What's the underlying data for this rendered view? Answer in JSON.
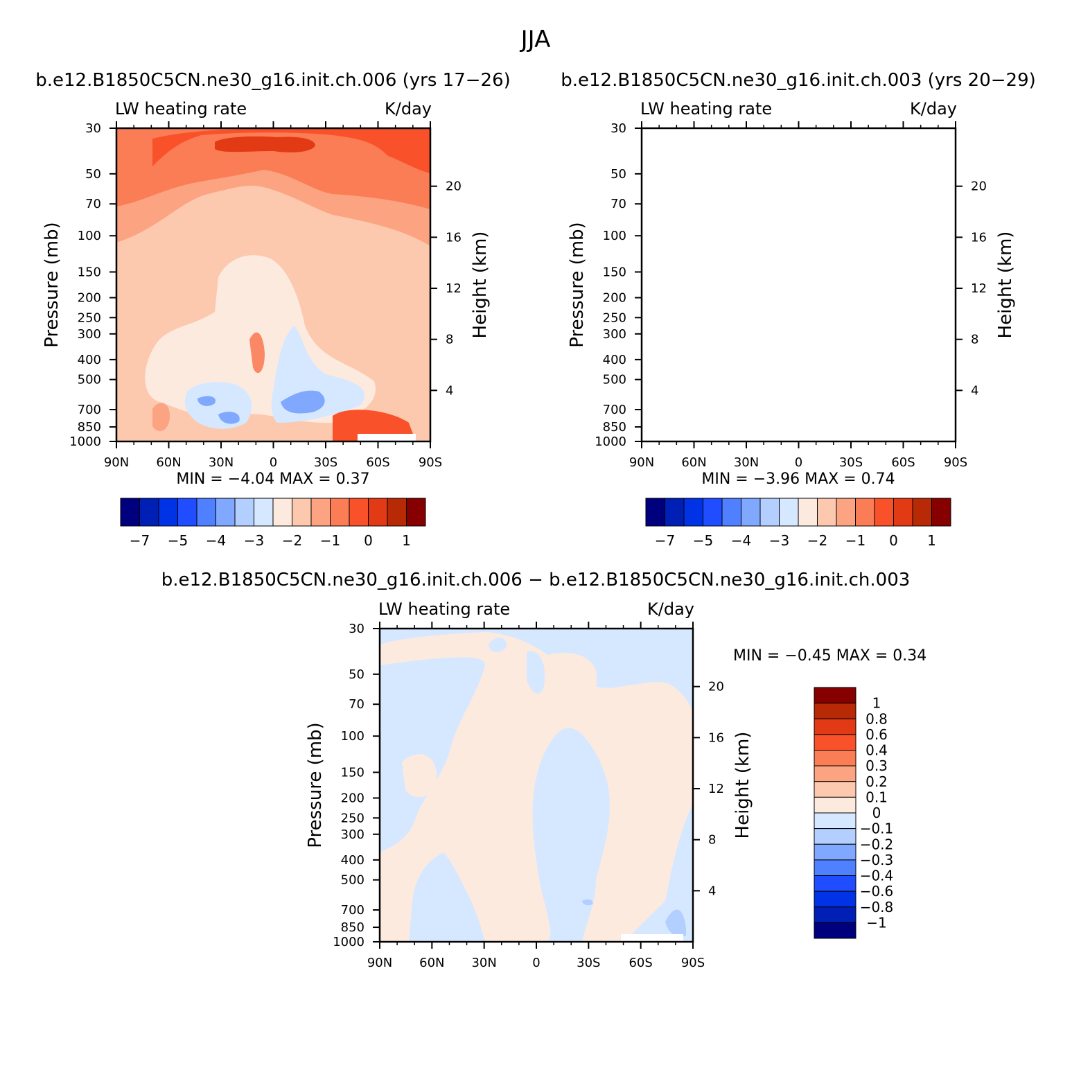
{
  "title": "JJA",
  "colors": {
    "main_scale": [
      "#00007f",
      "#0020b5",
      "#0033e6",
      "#1f4dff",
      "#4f80ff",
      "#80a8ff",
      "#b3cfff",
      "#d6e8ff",
      "#fdeadf",
      "#fcc9af",
      "#fca482",
      "#fb7d56",
      "#f9522a",
      "#e23a14",
      "#b82a05",
      "#860000"
    ],
    "diff_scale": [
      "#00007f",
      "#0020b5",
      "#0033e6",
      "#1f4dff",
      "#4f80ff",
      "#80a8ff",
      "#b3cfff",
      "#d6e8ff",
      "#fdeadf",
      "#fcc9af",
      "#fca482",
      "#fb7d56",
      "#f9522a",
      "#e23a14",
      "#b82a05",
      "#860000"
    ]
  },
  "chart_data": [
    {
      "type": "heatmap",
      "panel_title": "b.e12.B1850C5CN.ne30_g16.init.ch.006 (yrs 17-26)",
      "left_label": "LW heating rate",
      "right_label": "K/day",
      "xlabel": "",
      "ylabel": "Pressure (mb)",
      "y2label": "Height (km)",
      "x_ticks": [
        "90N",
        "60N",
        "30N",
        "0",
        "30S",
        "60S",
        "90S"
      ],
      "y_ticks": [
        "30",
        "50",
        "70",
        "100",
        "150",
        "200",
        "250",
        "300",
        "400",
        "500",
        "700",
        "850",
        "1000"
      ],
      "y2_ticks": [
        "20",
        "16",
        "12",
        "8",
        "4"
      ],
      "min_label": "MIN =",
      "min": "-4.04",
      "max_label": "MAX =",
      "max": "0.37",
      "colorbar_labels": [
        "-7",
        "-5",
        "-4",
        "-3",
        "-2",
        "-1",
        "0",
        "1"
      ]
    },
    {
      "type": "heatmap",
      "panel_title": "b.e12.B1850C5CN.ne30_g16.init.ch.003 (yrs 20-29)",
      "left_label": "LW heating rate",
      "right_label": "K/day",
      "xlabel": "",
      "ylabel": "Pressure (mb)",
      "y2label": "Height (km)",
      "x_ticks": [
        "90N",
        "60N",
        "30N",
        "0",
        "30S",
        "60S",
        "90S"
      ],
      "y_ticks": [
        "30",
        "50",
        "70",
        "100",
        "150",
        "200",
        "250",
        "300",
        "400",
        "500",
        "700",
        "850",
        "1000"
      ],
      "y2_ticks": [
        "20",
        "16",
        "12",
        "8",
        "4"
      ],
      "min_label": "MIN =",
      "min": "-3.96",
      "max_label": "MAX =",
      "max": "0.74",
      "colorbar_labels": [
        "-7",
        "-5",
        "-4",
        "-3",
        "-2",
        "-1",
        "0",
        "1"
      ]
    },
    {
      "type": "heatmap",
      "panel_title": "b.e12.B1850C5CN.ne30_g16.init.ch.006 - b.e12.B1850C5CN.ne30_g16.init.ch.003",
      "left_label": "LW heating rate",
      "right_label": "K/day",
      "xlabel": "",
      "ylabel": "Pressure (mb)",
      "y2label": "Height (km)",
      "x_ticks": [
        "90N",
        "60N",
        "30N",
        "0",
        "30S",
        "60S",
        "90S"
      ],
      "y_ticks": [
        "30",
        "50",
        "70",
        "100",
        "150",
        "200",
        "250",
        "300",
        "400",
        "500",
        "700",
        "850",
        "1000"
      ],
      "y2_ticks": [
        "20",
        "16",
        "12",
        "8",
        "4"
      ],
      "min_label": "MIN =",
      "min": "-0.45",
      "max_label": "MAX =",
      "max": "0.34",
      "colorbar_labels": [
        "1",
        "0.8",
        "0.6",
        "0.4",
        "0.3",
        "0.2",
        "0.1",
        "0",
        "-0.1",
        "-0.2",
        "-0.3",
        "-0.4",
        "-0.6",
        "-0.8",
        "-1"
      ]
    }
  ]
}
